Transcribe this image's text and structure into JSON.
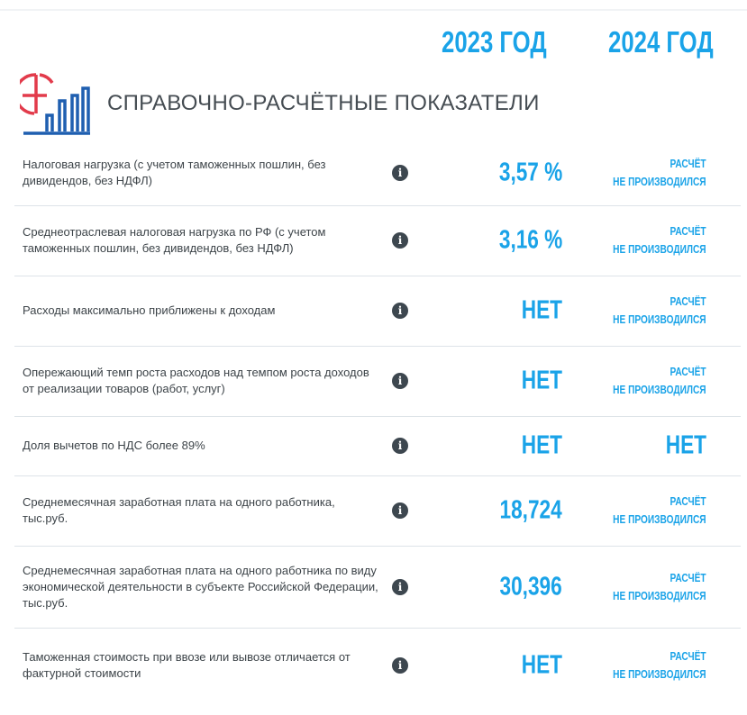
{
  "header": {
    "year1": "2023 ГОД",
    "year2": "2024 ГОД",
    "section_title": "СПРАВОЧНО-РАСЧЁТНЫЕ ПОКАЗАТЕЛИ",
    "logo_icon": "pie-bar-chart-icon"
  },
  "colors": {
    "accent": "#1aa3e8",
    "logo_red": "#e23b4b",
    "logo_blue": "#1f5fb0",
    "text": "#3d4449"
  },
  "rows": [
    {
      "label": "Налоговая нагрузка (с учетом таможенных пошлин, без дивидендов, без НДФЛ)",
      "v2023": "3,57 %",
      "v2024_line1": "РАСЧЁТ",
      "v2024_line2": "НЕ ПРОИЗВОДИЛСЯ"
    },
    {
      "label": "Среднеотраслевая налоговая нагрузка по РФ (с учетом таможенных пошлин, без дивидендов, без НДФЛ)",
      "v2023": "3,16 %",
      "v2024_line1": "РАСЧЁТ",
      "v2024_line2": "НЕ ПРОИЗВОДИЛСЯ"
    },
    {
      "label": "Расходы максимально приближены к доходам",
      "v2023": "НЕТ",
      "v2024_line1": "РАСЧЁТ",
      "v2024_line2": "НЕ ПРОИЗВОДИЛСЯ"
    },
    {
      "label": "Опережающий темп роста расходов над темпом роста доходов от реализации товаров (работ, услуг)",
      "v2023": "НЕТ",
      "v2024_line1": "РАСЧЁТ",
      "v2024_line2": "НЕ ПРОИЗВОДИЛСЯ"
    },
    {
      "label": "Доля вычетов по НДС более 89%",
      "v2023": "НЕТ",
      "v2024": "НЕТ"
    },
    {
      "label": "Среднемесячная заработная плата на одного работника, тыс.руб.",
      "v2023": "18,724",
      "v2024_line1": "РАСЧЁТ",
      "v2024_line2": "НЕ ПРОИЗВОДИЛСЯ"
    },
    {
      "label": "Среднемесячная заработная плата на одного работника по виду экономической деятельности в субъекте Российской Федерации, тыс.руб.",
      "v2023": "30,396",
      "v2024_line1": "РАСЧЁТ",
      "v2024_line2": "НЕ ПРОИЗВОДИЛСЯ"
    },
    {
      "label": "Таможенная стоимость при ввозе или вывозе отличается от фактурной стоимости",
      "v2023": "НЕТ",
      "v2024_line1": "РАСЧЁТ",
      "v2024_line2": "НЕ ПРОИЗВОДИЛСЯ"
    }
  ],
  "info_icon": "info-icon",
  "info_glyph": "i"
}
